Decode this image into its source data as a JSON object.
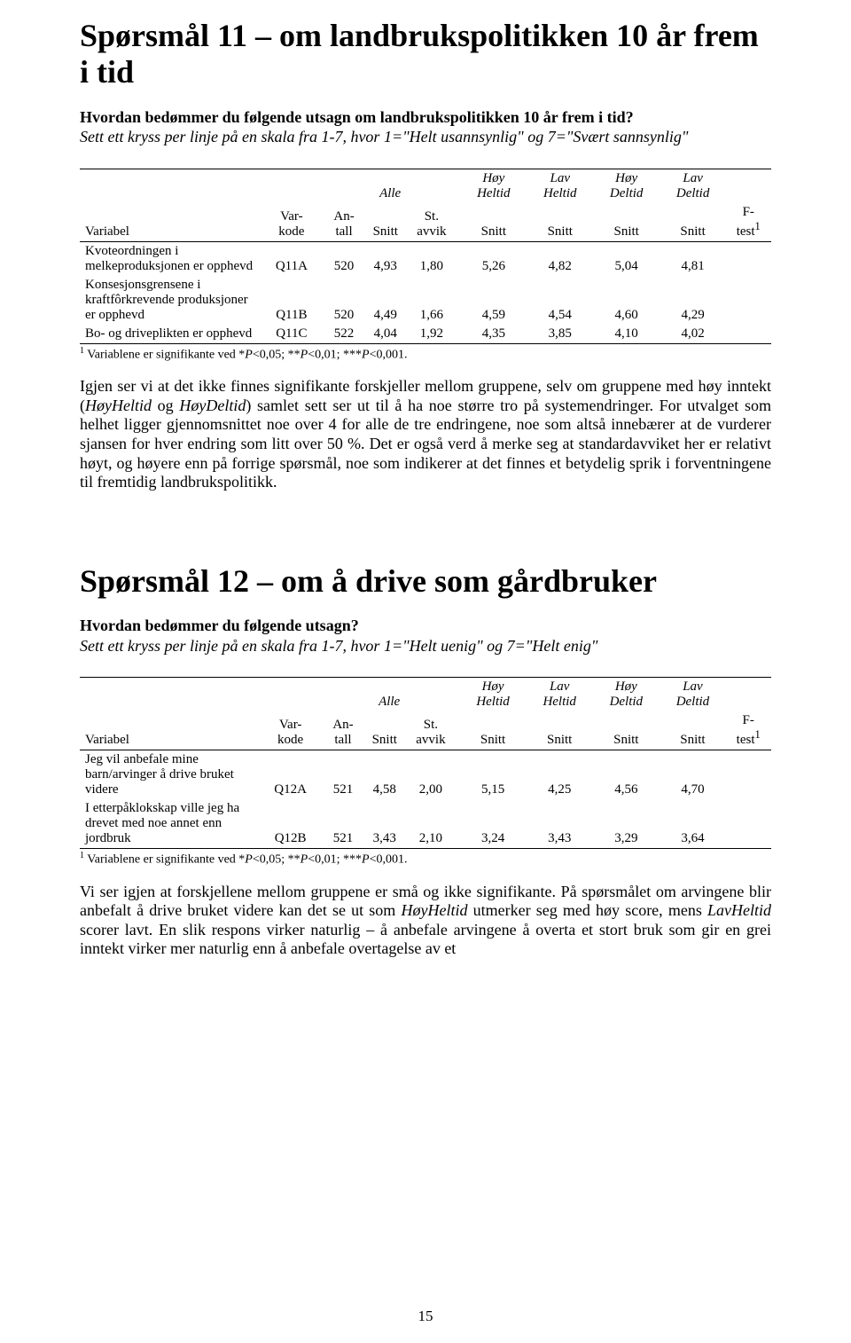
{
  "section11": {
    "heading": "Spørsmål 11 – om landbrukspolitikken 10 år frem i tid",
    "intro_bold": "Hvordan bedømmer du følgende utsagn om landbrukspolitikken 10 år frem i tid?",
    "intro_italic": "Sett ett kryss per linje på en skala fra 1-7, hvor 1=\"Helt usannsynlig\" og 7=\"Svært sannsynlig\"",
    "table": {
      "group_headers": [
        "Alle",
        "Høy Heltid",
        "Lav Heltid",
        "Høy Deltid",
        "Lav Deltid"
      ],
      "col_headers": [
        "Variabel",
        "Var-kode",
        "An-tall",
        "Snitt",
        "St. avvik",
        "Snitt",
        "Snitt",
        "Snitt",
        "Snitt",
        "F-test"
      ],
      "ftest_sup": "1",
      "rows": [
        {
          "label": "Kvoteordningen i melkeproduksjonen er opphevd",
          "code": "Q11A",
          "n": "520",
          "mean": "4,93",
          "sd": "1,80",
          "g1": "5,26",
          "g2": "4,82",
          "g3": "5,04",
          "g4": "4,81",
          "f": ""
        },
        {
          "label": "Konsesjonsgrensene i kraftfôrkrevende produksjoner er opphevd",
          "code": "Q11B",
          "n": "520",
          "mean": "4,49",
          "sd": "1,66",
          "g1": "4,59",
          "g2": "4,54",
          "g3": "4,60",
          "g4": "4,29",
          "f": ""
        },
        {
          "label": "Bo- og driveplikten er opphevd",
          "code": "Q11C",
          "n": "522",
          "mean": "4,04",
          "sd": "1,92",
          "g1": "4,35",
          "g2": "3,85",
          "g3": "4,10",
          "g4": "4,02",
          "f": ""
        }
      ]
    },
    "footnote_prefix": " Variablene er signifikante ved *",
    "footnote_p1": "P",
    "footnote_mid1": "<0,05; **",
    "footnote_p2": "P",
    "footnote_mid2": "<0,01; ***",
    "footnote_p3": "P",
    "footnote_end": "<0,001.",
    "paragraph_before_italic": "Igjen ser vi at det ikke finnes signifikante forskjeller mellom gruppene, selv om gruppene med høy inntekt (",
    "paragraph_italic1": "HøyHeltid",
    "paragraph_mid": " og ",
    "paragraph_italic2": "HøyDeltid",
    "paragraph_after_italic": ") samlet sett ser ut til å ha noe større tro på systemendringer. For utvalget som helhet ligger gjennomsnittet noe over 4 for alle de tre endringene, noe som altså innebærer at de vurderer sjansen for hver endring som litt over 50 %. Det er også verd å merke seg at standardavviket her er relativt høyt, og høyere enn på forrige spørsmål, noe som indikerer at det finnes et betydelig sprik i forventningene til fremtidig landbrukspolitikk."
  },
  "section12": {
    "heading": "Spørsmål 12 – om å drive som gårdbruker",
    "intro_bold": "Hvordan bedømmer du følgende utsagn?",
    "intro_italic": "Sett ett kryss per linje på en skala fra 1-7, hvor 1=\"Helt uenig\" og 7=\"Helt enig\"",
    "table": {
      "group_headers": [
        "Alle",
        "Høy Heltid",
        "Lav Heltid",
        "Høy Deltid",
        "Lav Deltid"
      ],
      "col_headers": [
        "Variabel",
        "Var-kode",
        "An-tall",
        "Snitt",
        "St. avvik",
        "Snitt",
        "Snitt",
        "Snitt",
        "Snitt",
        "F-test"
      ],
      "ftest_sup": "1",
      "rows": [
        {
          "label": "Jeg vil anbefale mine barn/arvinger å drive bruket videre",
          "code": "Q12A",
          "n": "521",
          "mean": "4,58",
          "sd": "2,00",
          "g1": "5,15",
          "g2": "4,25",
          "g3": "4,56",
          "g4": "4,70",
          "f": ""
        },
        {
          "label": "I etterpåklokskap ville jeg ha drevet med noe annet enn jordbruk",
          "code": "Q12B",
          "n": "521",
          "mean": "3,43",
          "sd": "2,10",
          "g1": "3,24",
          "g2": "3,43",
          "g3": "3,29",
          "g4": "3,64",
          "f": ""
        }
      ]
    },
    "footnote_prefix": " Variablene er signifikante ved *",
    "footnote_p1": "P",
    "footnote_mid1": "<0,05; **",
    "footnote_p2": "P",
    "footnote_mid2": "<0,01; ***",
    "footnote_p3": "P",
    "footnote_end": "<0,001.",
    "paragraph_before_italic1": "Vi ser igjen at forskjellene mellom gruppene er små og ikke signifikante. På spørsmålet om arvingene blir anbefalt å drive bruket videre kan det se ut som ",
    "paragraph_italic1": "HøyHeltid",
    "paragraph_mid1": " utmerker seg med høy score, mens ",
    "paragraph_italic2": "LavHeltid",
    "paragraph_after_italic2": " scorer lavt. En slik respons virker naturlig – å anbefale arvingene å overta et stort bruk som gir en grei inntekt virker mer naturlig enn å anbefale overtagelse av et"
  },
  "page_number": "15",
  "colors": {
    "text": "#000000",
    "background": "#ffffff"
  }
}
